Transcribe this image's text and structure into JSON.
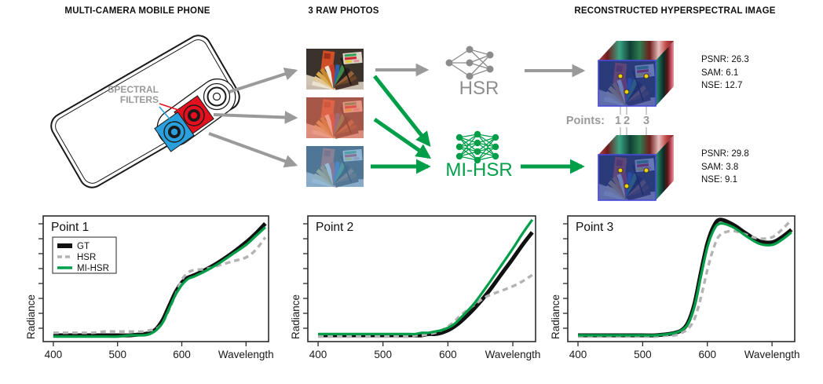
{
  "colors": {
    "accent_green": "#009E49",
    "arrow_gray": "#9a9a9a",
    "hsr_gray": "#8e8e8e",
    "dashed_gray": "#b3b3b3",
    "red_filter": "#e4101e",
    "blue_filter": "#29a0dc",
    "cube_border": "#4848d8"
  },
  "headers": {
    "left": "MULTI-CAMERA MOBILE PHONE",
    "middle": "3 RAW PHOTOS",
    "right": "RECONSTRUCTED HYPERSPECTRAL IMAGE"
  },
  "phone": {
    "filters_label_line1": "SPECTRAL",
    "filters_label_line2": "FILTERS"
  },
  "models": {
    "hsr": "HSR",
    "mihsr": "MI-HSR"
  },
  "points_row": {
    "label": "Points:",
    "values": [
      "1",
      "2",
      "3"
    ]
  },
  "metrics": {
    "hsr": {
      "psnr": "PSNR: 26.3",
      "sam": "SAM: 6.1",
      "nse": "NSE: 12.7"
    },
    "mihsr": {
      "psnr": "PSNR: 29.8",
      "sam": "SAM: 3.8",
      "nse": "NSE: 9.1"
    }
  },
  "chart_data": [
    {
      "type": "line",
      "title": "Point 1",
      "xlabel": "Wavelength",
      "ylabel": "Radiance",
      "x_ticks": [
        400,
        500,
        600,
        700
      ],
      "x_tick_labels": [
        "400",
        "500",
        "600",
        ""
      ],
      "x_range": [
        400,
        730
      ],
      "y_range": [
        0,
        1
      ],
      "y_ticks_labeled": false,
      "legend": true,
      "legend_position": "top-left",
      "x": [
        400,
        420,
        440,
        460,
        480,
        500,
        520,
        540,
        550,
        560,
        570,
        580,
        590,
        600,
        610,
        620,
        640,
        660,
        680,
        700,
        715,
        730
      ],
      "series": [
        {
          "name": "GT",
          "color": "#111111",
          "width": 5,
          "dash": null,
          "values": [
            0.05,
            0.05,
            0.05,
            0.05,
            0.05,
            0.05,
            0.05,
            0.06,
            0.07,
            0.1,
            0.17,
            0.28,
            0.39,
            0.47,
            0.51,
            0.53,
            0.58,
            0.64,
            0.71,
            0.79,
            0.86,
            0.94
          ]
        },
        {
          "name": "HSR",
          "color": "#b3b3b3",
          "width": 3.4,
          "dash": "7 5",
          "values": [
            0.07,
            0.07,
            0.07,
            0.07,
            0.08,
            0.08,
            0.08,
            0.08,
            0.09,
            0.1,
            0.15,
            0.25,
            0.37,
            0.49,
            0.55,
            0.57,
            0.58,
            0.61,
            0.64,
            0.67,
            0.73,
            0.83
          ]
        },
        {
          "name": "MI-HSR",
          "color": "#009E49",
          "width": 3.2,
          "dash": null,
          "values": [
            0.04,
            0.04,
            0.04,
            0.04,
            0.04,
            0.04,
            0.05,
            0.05,
            0.06,
            0.09,
            0.15,
            0.26,
            0.37,
            0.45,
            0.5,
            0.52,
            0.57,
            0.63,
            0.7,
            0.77,
            0.84,
            0.91
          ]
        }
      ]
    },
    {
      "type": "line",
      "title": "Point 2",
      "xlabel": "Wavelength",
      "ylabel": "Radiance",
      "x_ticks": [
        400,
        500,
        600,
        700
      ],
      "x_tick_labels": [
        "400",
        "500",
        "600",
        ""
      ],
      "x_range": [
        400,
        730
      ],
      "y_range": [
        0,
        1
      ],
      "y_ticks_labeled": false,
      "legend": false,
      "x": [
        400,
        420,
        440,
        460,
        480,
        500,
        520,
        540,
        550,
        560,
        570,
        580,
        590,
        600,
        610,
        620,
        640,
        660,
        680,
        700,
        715,
        730
      ],
      "series": [
        {
          "name": "GT",
          "color": "#111111",
          "width": 5,
          "dash": null,
          "values": [
            0.05,
            0.05,
            0.05,
            0.05,
            0.05,
            0.05,
            0.05,
            0.05,
            0.05,
            0.05,
            0.06,
            0.06,
            0.07,
            0.09,
            0.12,
            0.16,
            0.26,
            0.38,
            0.52,
            0.66,
            0.77,
            0.87
          ]
        },
        {
          "name": "HSR",
          "color": "#b3b3b3",
          "width": 3.4,
          "dash": "7 5",
          "values": [
            0.04,
            0.04,
            0.04,
            0.04,
            0.04,
            0.04,
            0.04,
            0.04,
            0.05,
            0.05,
            0.06,
            0.07,
            0.09,
            0.12,
            0.16,
            0.21,
            0.29,
            0.36,
            0.4,
            0.44,
            0.48,
            0.53
          ]
        },
        {
          "name": "MI-HSR",
          "color": "#009E49",
          "width": 3.2,
          "dash": null,
          "values": [
            0.06,
            0.06,
            0.06,
            0.06,
            0.06,
            0.06,
            0.06,
            0.06,
            0.06,
            0.07,
            0.07,
            0.08,
            0.09,
            0.11,
            0.14,
            0.19,
            0.3,
            0.44,
            0.59,
            0.74,
            0.86,
            0.97
          ]
        }
      ]
    },
    {
      "type": "line",
      "title": "Point 3",
      "xlabel": "Wavelength",
      "ylabel": "Radiance",
      "x_ticks": [
        400,
        500,
        600,
        700
      ],
      "x_tick_labels": [
        "400",
        "500",
        "600",
        ""
      ],
      "x_range": [
        400,
        730
      ],
      "y_range": [
        0,
        1
      ],
      "y_ticks_labeled": false,
      "legend": false,
      "x": [
        400,
        420,
        440,
        460,
        480,
        500,
        520,
        540,
        550,
        560,
        570,
        580,
        590,
        600,
        610,
        620,
        640,
        660,
        680,
        700,
        715,
        730
      ],
      "series": [
        {
          "name": "GT",
          "color": "#111111",
          "width": 5,
          "dash": null,
          "values": [
            0.05,
            0.05,
            0.05,
            0.05,
            0.05,
            0.05,
            0.05,
            0.06,
            0.07,
            0.09,
            0.15,
            0.3,
            0.55,
            0.78,
            0.92,
            0.97,
            0.93,
            0.86,
            0.8,
            0.79,
            0.83,
            0.89
          ]
        },
        {
          "name": "HSR",
          "color": "#b3b3b3",
          "width": 3.4,
          "dash": "7 5",
          "values": [
            0.04,
            0.04,
            0.04,
            0.04,
            0.04,
            0.04,
            0.04,
            0.05,
            0.05,
            0.07,
            0.1,
            0.18,
            0.35,
            0.57,
            0.75,
            0.85,
            0.88,
            0.85,
            0.82,
            0.83,
            0.89,
            0.97
          ]
        },
        {
          "name": "MI-HSR",
          "color": "#009E49",
          "width": 3.2,
          "dash": null,
          "values": [
            0.05,
            0.05,
            0.05,
            0.05,
            0.05,
            0.05,
            0.05,
            0.06,
            0.07,
            0.09,
            0.14,
            0.28,
            0.52,
            0.75,
            0.89,
            0.94,
            0.91,
            0.84,
            0.78,
            0.77,
            0.81,
            0.87
          ]
        }
      ]
    }
  ]
}
